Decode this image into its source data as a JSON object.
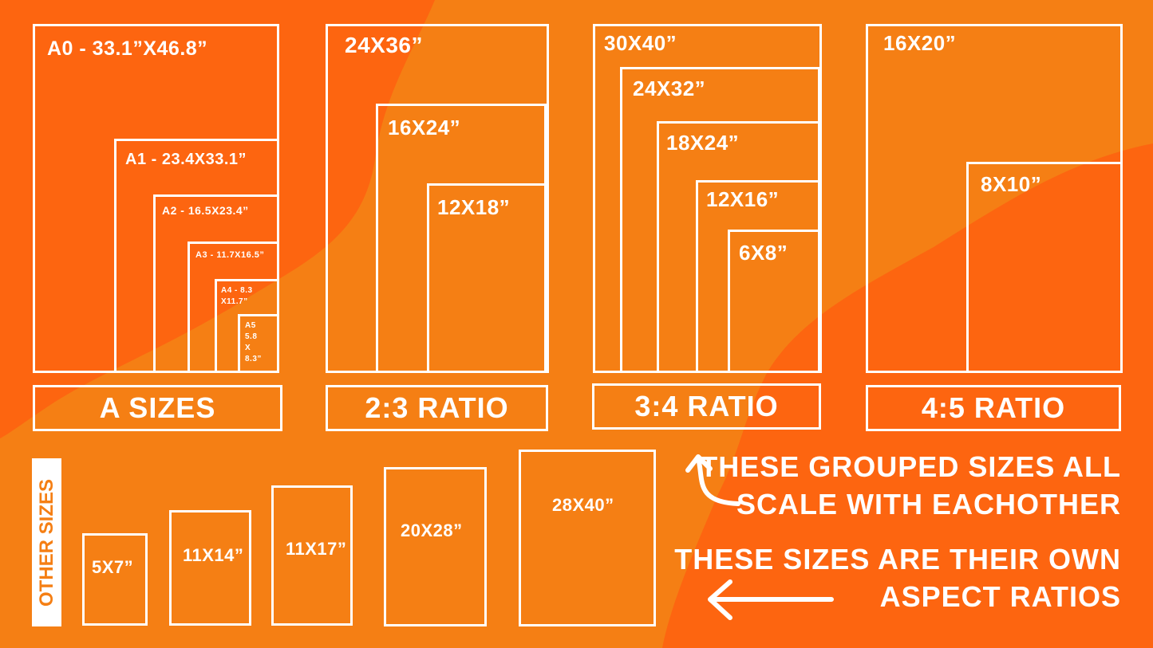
{
  "colors": {
    "dark_orange": "#fd6510",
    "light_orange": "#f57f14",
    "stroke": "#ffffff"
  },
  "a_sizes": {
    "caption": "A SIZES",
    "items": [
      "A0 - 33.1”X46.8”",
      "A1 - 23.4X33.1”",
      "A2 - 16.5X23.4”",
      "A3 - 11.7X16.5”",
      "A4 - 8.3 X11.7”",
      "A5 5.8 X 8.3”"
    ]
  },
  "ratio_2_3": {
    "caption": "2:3 RATIO",
    "items": [
      "24X36”",
      "16X24”",
      "12X18”"
    ]
  },
  "ratio_3_4": {
    "caption": "3:4 RATIO",
    "items": [
      "30X40”",
      "24X32”",
      "18X24”",
      "12X16”",
      "6X8”"
    ]
  },
  "ratio_4_5": {
    "caption": "4:5 RATIO",
    "items": [
      "16X20”",
      "8X10”"
    ]
  },
  "other_sizes": {
    "caption": "OTHER SIZES",
    "items": [
      "5X7”",
      "11X14”",
      "11X17”",
      "20X28”",
      "28X40”"
    ]
  },
  "notes": {
    "grouped": [
      "THESE GROUPED SIZES ALL",
      "SCALE WITH EACHOTHER"
    ],
    "own": [
      "THESE SIZES ARE THEIR OWN",
      "ASPECT RATIOS"
    ]
  }
}
